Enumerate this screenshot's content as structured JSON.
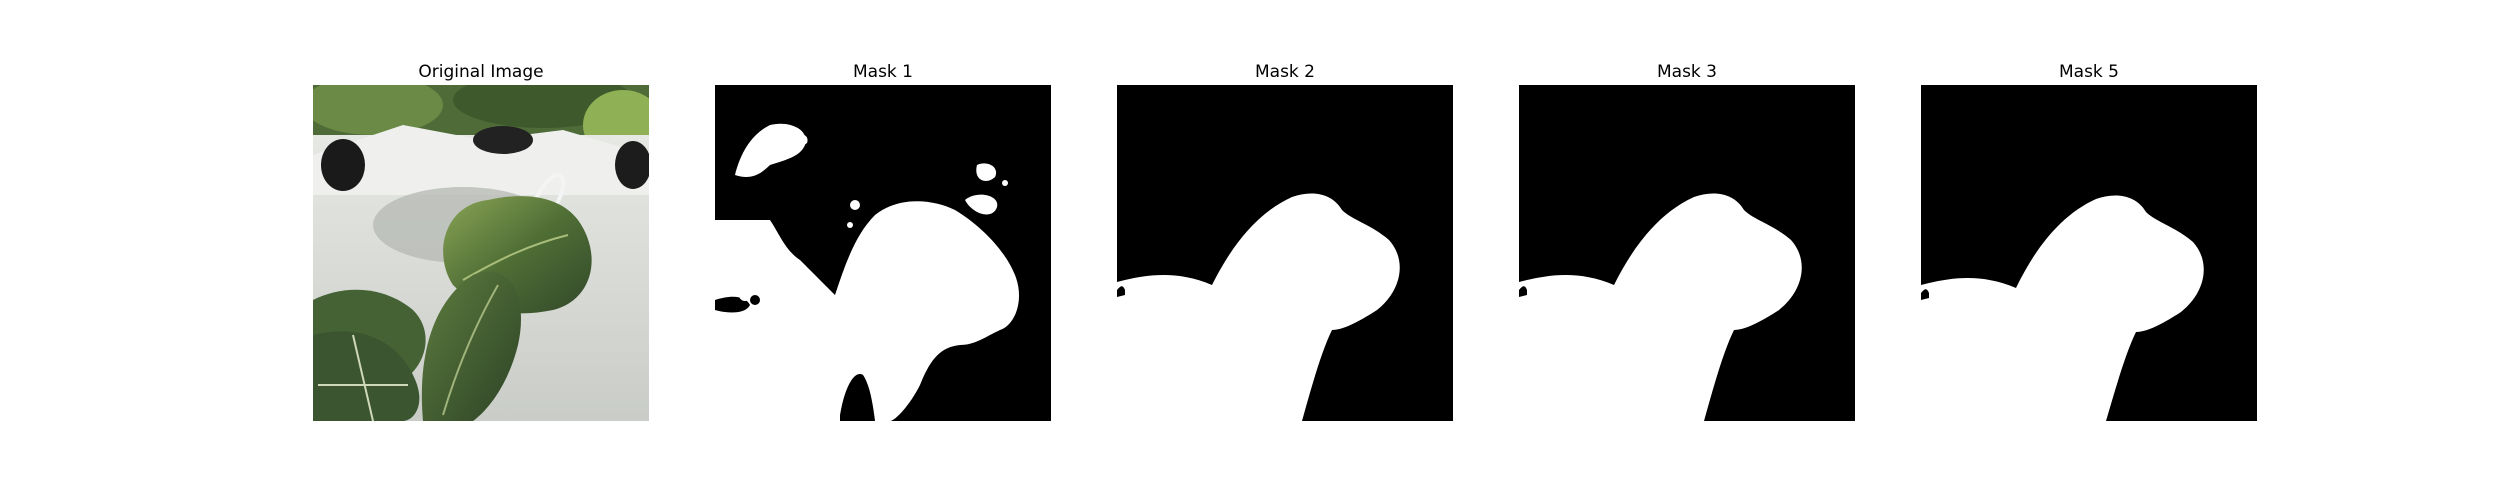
{
  "figure": {
    "panels": [
      {
        "title": "Original Image",
        "kind": "photo",
        "subject": "plant-leaves-on-white-planter"
      },
      {
        "title": "Mask 1",
        "kind": "binary-mask"
      },
      {
        "title": "Mask 2",
        "kind": "binary-mask"
      },
      {
        "title": "Mask 3",
        "kind": "binary-mask"
      },
      {
        "title": "Mask 5",
        "kind": "binary-mask"
      }
    ],
    "colors": {
      "mask_foreground": "#ffffff",
      "mask_background": "#000000",
      "leaf_dark": "#3f5b2c",
      "leaf_light": "#7f9a4c",
      "planter": "#d9dbd7",
      "foliage_background": "#4e6b38"
    }
  }
}
